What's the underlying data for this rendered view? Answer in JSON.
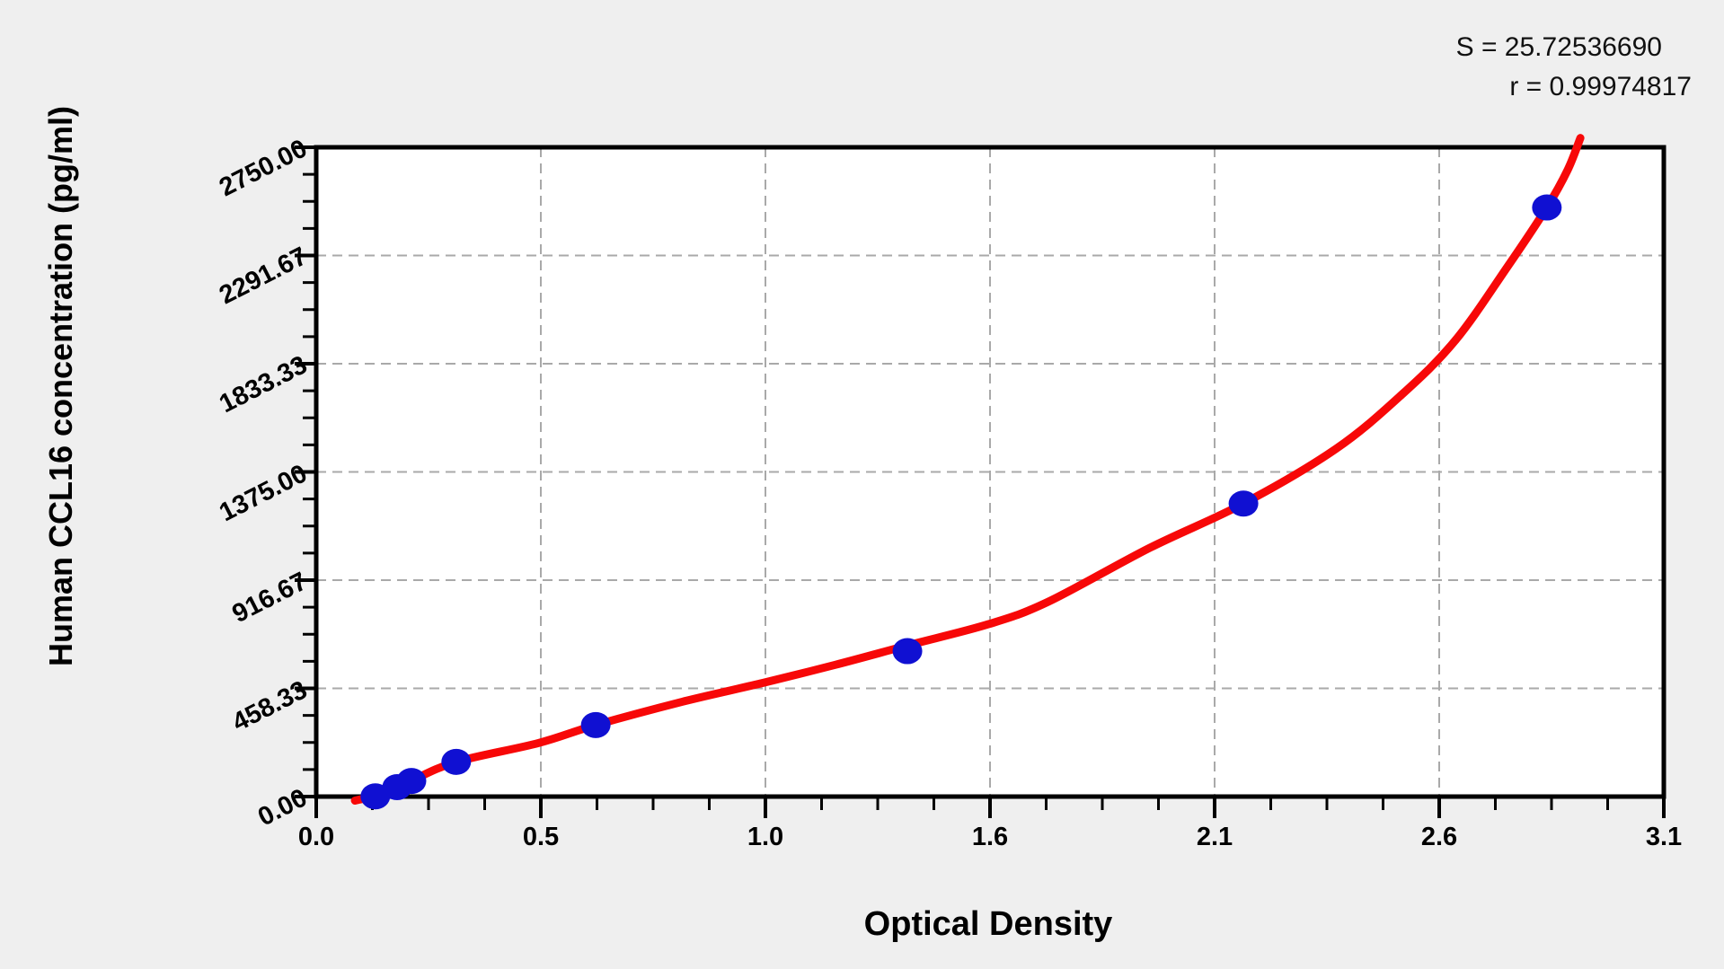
{
  "stats": {
    "s_line": "S = 25.72536690",
    "r_line": "r = 0.99974817"
  },
  "chart_data": {
    "type": "scatter",
    "title": "",
    "xlabel": "Optical Density",
    "ylabel": "Human CCL16 concentration (pg/ml)",
    "xlim": [
      0,
      3.1
    ],
    "ylim": [
      0,
      2750
    ],
    "x_major_tick_values": [
      0,
      0.5166667,
      1.0333333,
      1.55,
      2.0666667,
      2.5833333,
      3.1
    ],
    "x_tick_labels": [
      "0.0",
      "0.5",
      "1.0",
      "1.6",
      "2.1",
      "2.6",
      "3.1"
    ],
    "y_major_tick_values": [
      0,
      458.33,
      916.67,
      1375.0,
      1833.33,
      2291.67,
      2750.0
    ],
    "y_tick_labels": [
      "0.00",
      "458.33",
      "916.67",
      "1375.00",
      "1833.33",
      "2291.67",
      "2750.00"
    ],
    "minor_divisions_per_major": 4,
    "grid": "dashed-at-major-ticks",
    "legend": "none",
    "annotations": [
      {
        "name": "S",
        "value": "25.72536690"
      },
      {
        "name": "r",
        "value": "0.99974817"
      }
    ],
    "colors": {
      "curve": "#f70808",
      "marker": "#1010d2",
      "axis": "#000000",
      "grid": "#a9a9a9",
      "plot_bg": "#ffffff",
      "page_bg": "#efefef"
    },
    "series": [
      {
        "name": "standard-points",
        "type": "scatter",
        "points": [
          [
            0.136,
            1
          ],
          [
            0.186,
            40
          ],
          [
            0.219,
            66
          ],
          [
            0.322,
            147
          ],
          [
            0.643,
            303
          ],
          [
            1.36,
            616
          ],
          [
            2.133,
            1241
          ],
          [
            2.831,
            2495
          ]
        ]
      },
      {
        "name": "fitted-curve",
        "type": "line",
        "points": [
          [
            0.089,
            -17
          ],
          [
            0.141,
            6
          ],
          [
            0.182,
            36
          ],
          [
            0.219,
            67
          ],
          [
            0.322,
            147
          ],
          [
            0.512,
            227
          ],
          [
            0.643,
            303
          ],
          [
            0.843,
            402
          ],
          [
            1.029,
            482
          ],
          [
            1.194,
            558
          ],
          [
            1.36,
            640
          ],
          [
            1.546,
            730
          ],
          [
            1.684,
            825
          ],
          [
            1.918,
            1054
          ],
          [
            2.133,
            1241
          ],
          [
            2.346,
            1473
          ],
          [
            2.497,
            1702
          ],
          [
            2.62,
            1931
          ],
          [
            2.74,
            2243
          ],
          [
            2.831,
            2495
          ],
          [
            2.879,
            2655
          ],
          [
            2.908,
            2789
          ]
        ]
      }
    ]
  }
}
